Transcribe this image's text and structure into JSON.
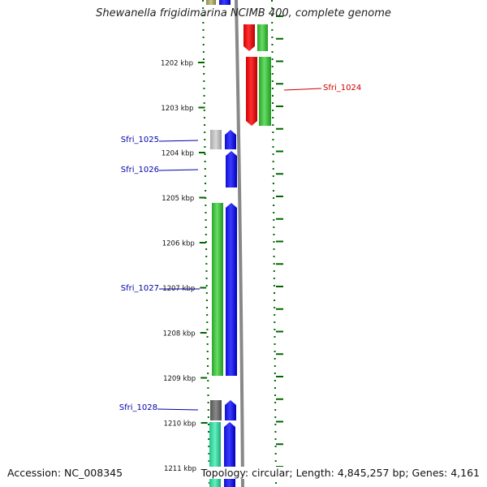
{
  "title": "Shewanella frigidimarina NCIMB 400, complete genome",
  "footer": {
    "accession": "Accession: NC_008345",
    "topology": "Topology: circular; Length: 4,845,257 bp; Genes: 4,161"
  },
  "colors": {
    "forward_cds": "#0000ff",
    "reverse_cds": "#ff0000",
    "gc_track": "#33bb33",
    "backbone": "#888888",
    "tick": "#006600",
    "label_forward": "#0000aa",
    "label_reverse": "#cc0000"
  },
  "ruler": {
    "unit": "kbp",
    "ticks": [
      {
        "kbp": 1202,
        "label": "1202 kbp"
      },
      {
        "kbp": 1203,
        "label": "1203 kbp"
      },
      {
        "kbp": 1204,
        "label": "1204 kbp"
      },
      {
        "kbp": 1205,
        "label": "1205 kbp"
      },
      {
        "kbp": 1206,
        "label": "1206 kbp"
      },
      {
        "kbp": 1207,
        "label": "1207 kbp"
      },
      {
        "kbp": 1208,
        "label": "1208 kbp"
      },
      {
        "kbp": 1209,
        "label": "1209 kbp"
      },
      {
        "kbp": 1210,
        "label": "1210 kbp"
      },
      {
        "kbp": 1211,
        "label": "1211 kbp"
      }
    ]
  },
  "genes": [
    {
      "name": "Sfri_1024",
      "strand": "reverse",
      "start_kbp": 1200.8,
      "end_kbp": 1203.4,
      "labeled": true
    },
    {
      "name": "Sfri_1025",
      "strand": "forward",
      "start_kbp": 1203.5,
      "end_kbp": 1203.9,
      "labeled": true
    },
    {
      "name": "Sfri_1026",
      "strand": "forward",
      "start_kbp": 1203.95,
      "end_kbp": 1204.8,
      "labeled": true
    },
    {
      "name": "Sfri_1027",
      "strand": "forward",
      "start_kbp": 1205.1,
      "end_kbp": 1209.0,
      "labeled": true
    },
    {
      "name": "Sfri_1028",
      "strand": "forward",
      "start_kbp": 1209.5,
      "end_kbp": 1209.9,
      "labeled": true
    },
    {
      "name": "",
      "strand": "forward",
      "start_kbp": 1209.95,
      "end_kbp": 1211.5,
      "labeled": false
    },
    {
      "name": "",
      "strand": "forward",
      "start_kbp": 1200.5,
      "end_kbp": 1200.65,
      "labeled": false
    }
  ]
}
